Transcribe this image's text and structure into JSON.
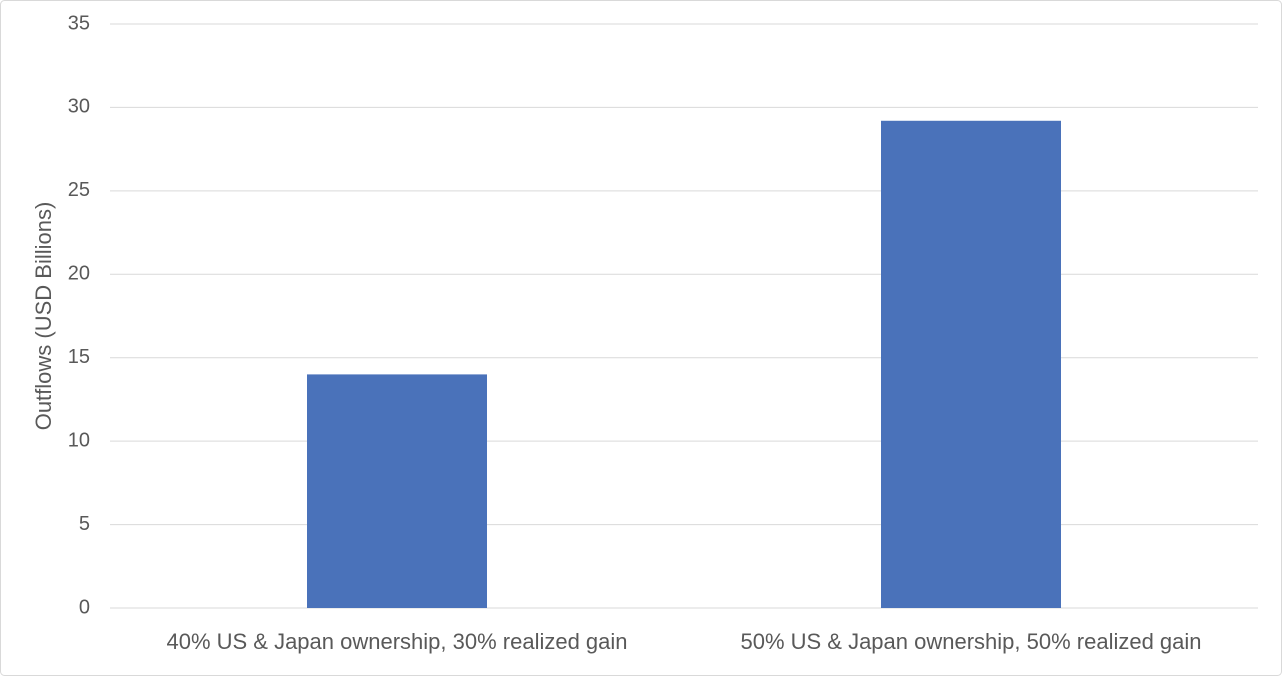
{
  "chart_data": {
    "type": "bar",
    "y_label": "Outflows (USD Billions)",
    "categories": [
      "40% US & Japan ownership, 30% realized gain",
      "50% US & Japan ownership, 50% realized gain"
    ],
    "values": [
      14.0,
      29.2
    ],
    "color": "#4a72ba",
    "ylim": [
      0,
      35
    ],
    "yticks": [
      0,
      5,
      10,
      15,
      20,
      25,
      30,
      35
    ],
    "grid": true
  }
}
